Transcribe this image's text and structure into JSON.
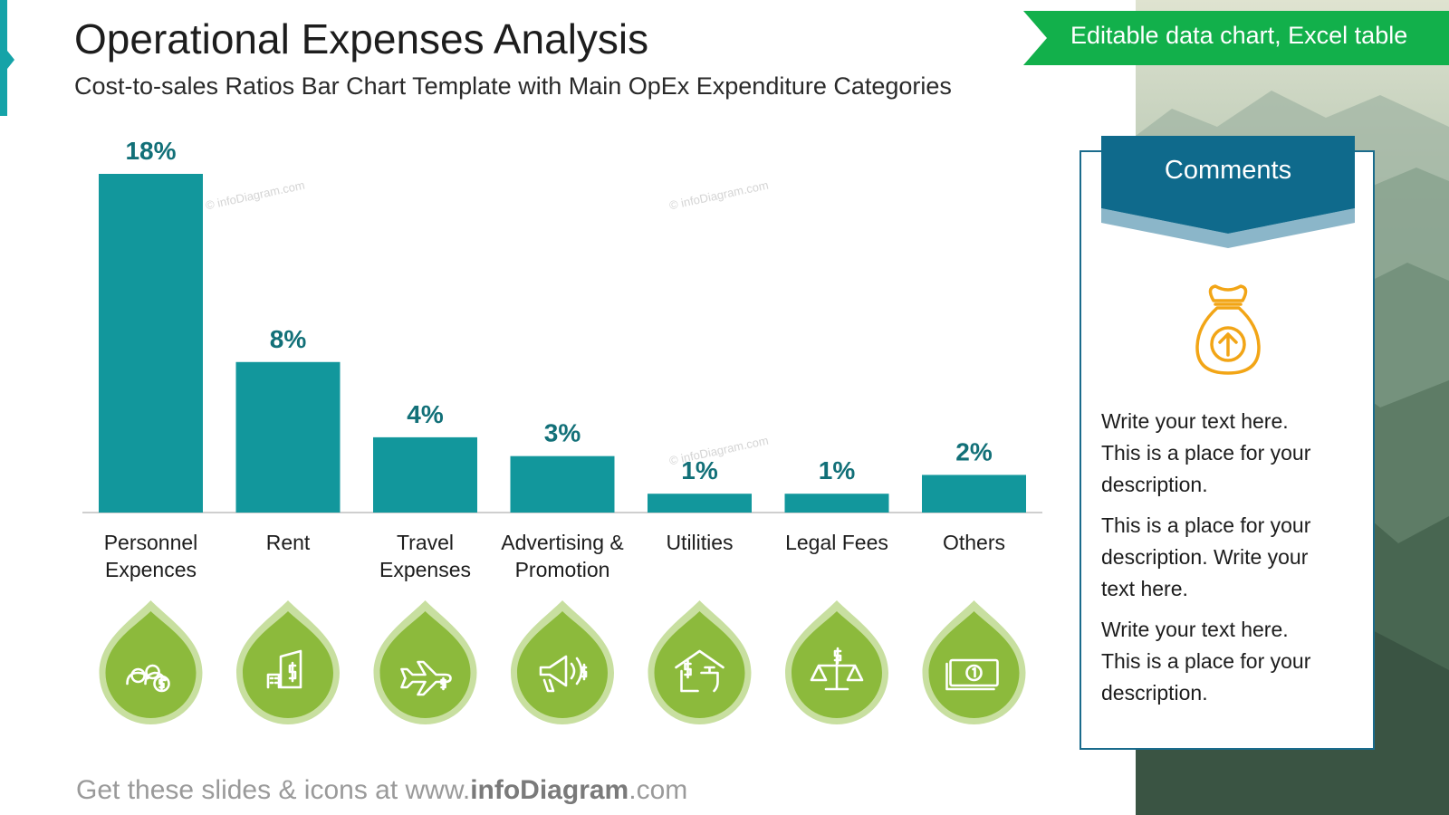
{
  "header": {
    "title": "Operational Expenses Analysis",
    "subtitle": "Cost-to-sales Ratios Bar Chart Template with Main OpEx Expenditure Categories",
    "ribbon_label": "Editable data chart, Excel table"
  },
  "colors": {
    "bar": "#12979c",
    "value_label": "#127078",
    "icon_drop": "#8cba3c",
    "icon_drop_outline": "#c8dfa0",
    "ribbon": "#12b04b",
    "comments_header": "#0f6a8c",
    "money_icon": "#f2a516"
  },
  "chart_data": {
    "type": "bar",
    "categories": [
      "Personnel Expences",
      "Rent",
      "Travel Expenses",
      "Advertising & Promotion",
      "Utilities",
      "Legal Fees",
      "Others"
    ],
    "category_lines": [
      [
        "Personnel",
        "Expences"
      ],
      [
        "Rent"
      ],
      [
        "Travel",
        "Expenses"
      ],
      [
        "Advertising &",
        "Promotion"
      ],
      [
        "Utilities"
      ],
      [
        "Legal Fees"
      ],
      [
        "Others"
      ]
    ],
    "values": [
      18,
      8,
      4,
      3,
      1,
      1,
      2
    ],
    "value_labels": [
      "18%",
      "8%",
      "4%",
      "3%",
      "1%",
      "1%",
      "2%"
    ],
    "ylim": [
      0,
      18
    ],
    "icons": [
      "people-money-icon",
      "building-dollar-icon",
      "plane-dollar-icon",
      "megaphone-dollar-icon",
      "house-tap-dollar-icon",
      "scales-dollar-icon",
      "banknote-icon"
    ],
    "title": "",
    "xlabel": "",
    "ylabel": "",
    "grid": false,
    "legend": "none"
  },
  "comments": {
    "title": "Comments",
    "icon": "money-bag-up-icon",
    "paragraphs": [
      [
        "Write your text here.",
        "This is a place for your",
        "description."
      ],
      [
        "This is a place for your",
        "description. Write your",
        "text here."
      ],
      [
        "Write your text here.",
        "This is a place for your",
        "description."
      ]
    ]
  },
  "footer": {
    "prefix": "Get these slides & icons at www.",
    "brand": "infoDiagram",
    "suffix": ".com"
  },
  "watermark": "© infoDiagram.com"
}
